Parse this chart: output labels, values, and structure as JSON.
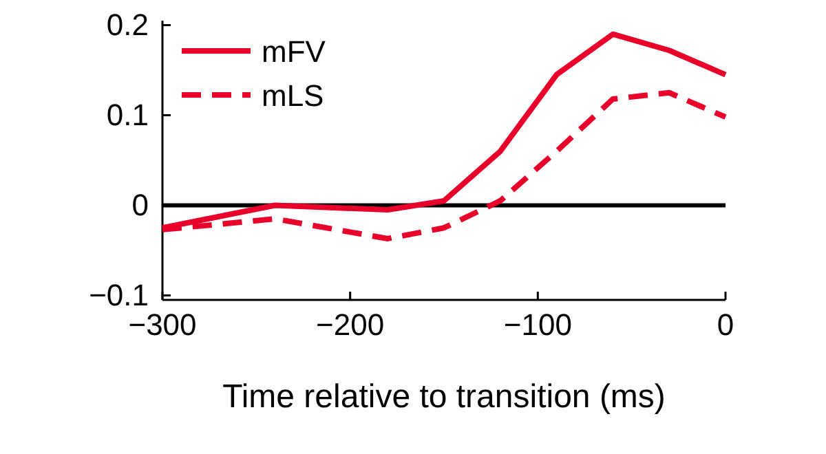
{
  "chart_data": {
    "type": "line",
    "xlabel": "Time relative to transition (ms)",
    "x": [
      -300,
      -240,
      -180,
      -150,
      -120,
      -90,
      -60,
      -30,
      0
    ],
    "series": [
      {
        "name": "mFV",
        "color": "#e8002a",
        "line_style": "solid",
        "values": [
          -0.025,
          0.0,
          -0.005,
          0.005,
          0.06,
          0.145,
          0.19,
          0.172,
          0.145
        ]
      },
      {
        "name": "mLS",
        "color": "#e8002a",
        "line_style": "dashed",
        "values": [
          -0.027,
          -0.015,
          -0.037,
          -0.025,
          0.005,
          0.06,
          0.118,
          0.125,
          0.098
        ]
      }
    ],
    "xlim": [
      -300,
      0
    ],
    "xticks": [
      {
        "value": -300,
        "label": "−300"
      },
      {
        "value": -200,
        "label": "−200"
      },
      {
        "value": -100,
        "label": "−100"
      },
      0
    ],
    "ylim": [
      -0.105,
      0.205
    ],
    "yticks": [
      {
        "value": -0.1,
        "label": "−0.1"
      },
      0,
      0.1,
      0.2
    ],
    "ref_lines": [
      {
        "axis": "y",
        "value": 0,
        "color": "#000000"
      }
    ],
    "legend": "top left",
    "grid": false,
    "marker": "none"
  }
}
